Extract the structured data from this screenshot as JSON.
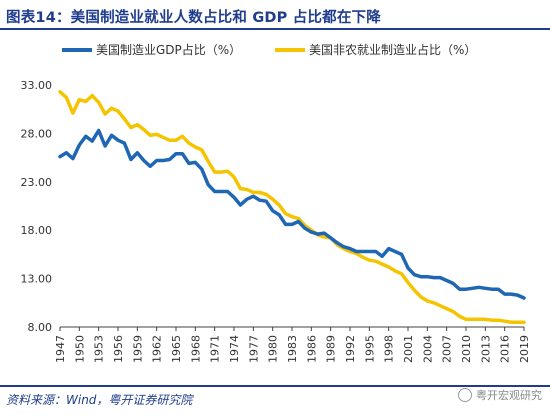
{
  "title": "图表14：美国制造业就业人数占比和 GDP 占比都在下降",
  "source": "资料来源：Wind，粤开证券研究院",
  "watermark": "粤开宏观研究",
  "colors": {
    "blue": "#1f66b4",
    "yellow": "#f5c400",
    "title": "#1f3d8c",
    "axis": "#404040"
  },
  "chart_data": {
    "type": "line",
    "legend_position": "top",
    "grid": false,
    "ylim": [
      8.0,
      33.0
    ],
    "yticks": [
      "8.00",
      "13.00",
      "18.00",
      "23.00",
      "28.00",
      "33.00"
    ],
    "xticks": [
      "1947",
      "1950",
      "1953",
      "1956",
      "1959",
      "1962",
      "1965",
      "1968",
      "1971",
      "1974",
      "1977",
      "1980",
      "1983",
      "1986",
      "1989",
      "1992",
      "1995",
      "1998",
      "2001",
      "2004",
      "2007",
      "2010",
      "2013",
      "2016",
      "2019"
    ],
    "x": [
      1947,
      1948,
      1949,
      1950,
      1951,
      1952,
      1953,
      1954,
      1955,
      1956,
      1957,
      1958,
      1959,
      1960,
      1961,
      1962,
      1963,
      1964,
      1965,
      1966,
      1967,
      1968,
      1969,
      1970,
      1971,
      1972,
      1973,
      1974,
      1975,
      1976,
      1977,
      1978,
      1979,
      1980,
      1981,
      1982,
      1983,
      1984,
      1985,
      1986,
      1987,
      1988,
      1989,
      1990,
      1991,
      1992,
      1993,
      1994,
      1995,
      1996,
      1997,
      1998,
      1999,
      2000,
      2001,
      2002,
      2003,
      2004,
      2005,
      2006,
      2007,
      2008,
      2009,
      2010,
      2011,
      2012,
      2013,
      2014,
      2015,
      2016,
      2017,
      2018,
      2019
    ],
    "series": [
      {
        "name": "美国制造业GDP占比（%）",
        "color": "#1f66b4",
        "values": [
          25.6,
          26.0,
          25.4,
          26.8,
          27.7,
          27.2,
          28.3,
          26.7,
          27.8,
          27.3,
          27.0,
          25.3,
          26.0,
          25.2,
          24.6,
          25.2,
          25.2,
          25.3,
          25.9,
          25.9,
          24.9,
          25.0,
          24.3,
          22.7,
          22.0,
          22.0,
          22.0,
          21.4,
          20.6,
          21.2,
          21.5,
          21.1,
          21.0,
          20.0,
          19.6,
          18.6,
          18.6,
          18.9,
          18.2,
          17.8,
          17.6,
          17.7,
          17.2,
          16.7,
          16.3,
          16.1,
          15.8,
          15.8,
          15.8,
          15.8,
          15.3,
          16.1,
          15.8,
          15.5,
          14.1,
          13.4,
          13.2,
          13.2,
          13.1,
          13.1,
          12.8,
          12.5,
          11.9,
          11.9,
          12.0,
          12.1,
          12.0,
          11.9,
          11.9,
          11.4,
          11.4,
          11.3,
          11.0
        ]
      },
      {
        "name": "美国非农就业制造业占比（%）",
        "color": "#f5c400",
        "values": [
          32.3,
          31.7,
          30.1,
          31.5,
          31.3,
          31.9,
          31.2,
          30.0,
          30.6,
          30.3,
          29.5,
          28.6,
          28.9,
          28.4,
          27.8,
          27.9,
          27.6,
          27.3,
          27.3,
          27.7,
          27.0,
          26.6,
          26.3,
          25.1,
          24.0,
          24.0,
          24.1,
          23.5,
          22.3,
          22.2,
          21.9,
          21.9,
          21.7,
          21.2,
          20.6,
          19.7,
          19.4,
          19.2,
          18.5,
          18.0,
          17.5,
          17.3,
          17.2,
          16.5,
          16.1,
          15.8,
          15.6,
          15.2,
          14.9,
          14.8,
          14.5,
          14.2,
          13.8,
          13.5,
          12.6,
          11.8,
          11.1,
          10.7,
          10.5,
          10.2,
          9.9,
          9.6,
          9.1,
          8.8,
          8.8,
          8.8,
          8.8,
          8.7,
          8.7,
          8.6,
          8.5,
          8.5,
          8.5
        ]
      }
    ]
  }
}
